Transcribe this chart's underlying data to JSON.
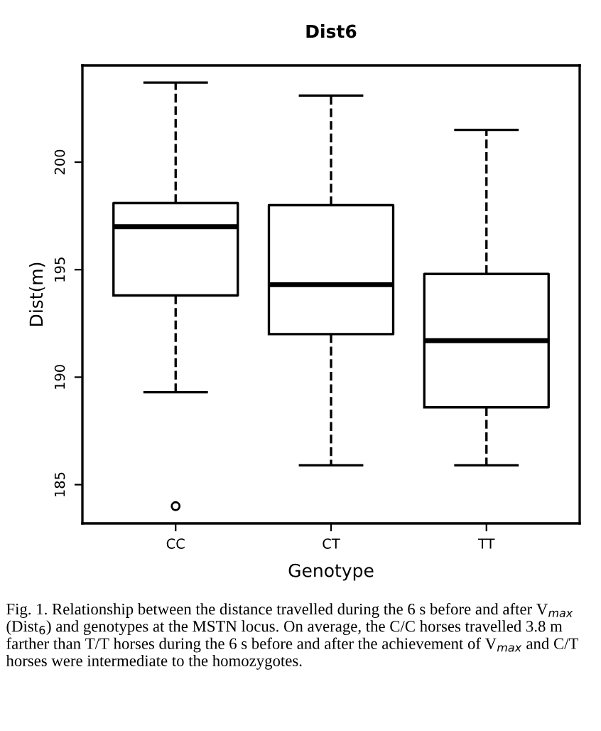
{
  "chart_data": {
    "type": "box",
    "title": "Dist6",
    "xlabel": "Genotype",
    "ylabel": "Dist(m)",
    "categories": [
      "CC",
      "CT",
      "TT"
    ],
    "boxes": [
      {
        "low": 189.3,
        "q1": 193.8,
        "median": 197.0,
        "q3": 198.1,
        "high": 203.7,
        "outliers": [
          184.0
        ]
      },
      {
        "low": 185.9,
        "q1": 192.0,
        "median": 194.3,
        "q3": 198.0,
        "high": 203.1
      },
      {
        "low": 185.9,
        "q1": 188.6,
        "median": 191.7,
        "q3": 194.8,
        "high": 201.5
      }
    ],
    "ylim": [
      183.2,
      204.5
    ],
    "yticks": [
      185,
      190,
      195,
      200
    ],
    "grid": false,
    "line_style": "dashed",
    "annotations": [
      "Fig. 1. Relationship between the distance travelled during the 6 s before and after V$_{max}$ (Dist$_{6}$) and genotypes at the MSTN locus. On average, the C/C horses travelled 3.8 m farther than T/T horses during the 6 s before and after the achievement of V$_{max}$ and C/T horses were intermediate to the homozygotes."
    ]
  }
}
